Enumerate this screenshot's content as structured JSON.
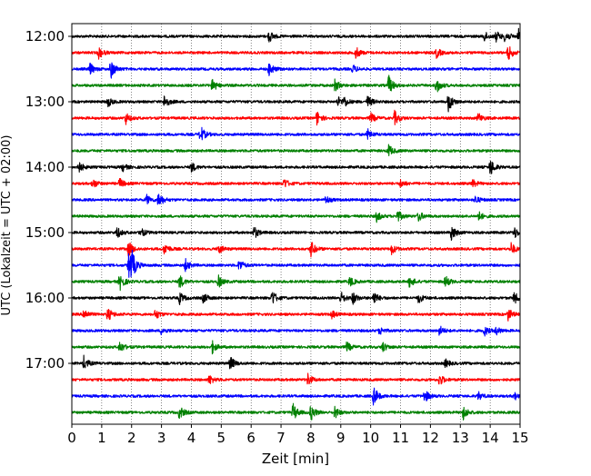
{
  "chart_data": {
    "type": "line",
    "title": "",
    "xlabel": "Zeit  [min]",
    "ylabel": "UTC (Lokalzeit = UTC + 02:00)",
    "xlim": [
      0,
      15
    ],
    "x_ticks": [
      "0",
      "1",
      "2",
      "3",
      "4",
      "5",
      "6",
      "7",
      "8",
      "9",
      "10",
      "11",
      "12",
      "13",
      "14",
      "15"
    ],
    "y_ticks": [
      {
        "label": "12:00",
        "trace": 0
      },
      {
        "label": "13:00",
        "trace": 4
      },
      {
        "label": "14:00",
        "trace": 8
      },
      {
        "label": "15:00",
        "trace": 12
      },
      {
        "label": "16:00",
        "trace": 16
      },
      {
        "label": "17:00",
        "trace": 20
      }
    ],
    "grid": "vertical-dotted",
    "trace_interval_min": 15,
    "colors": [
      "#000000",
      "#ff0000",
      "#0000ff",
      "#008000"
    ],
    "traces": [
      {
        "start": "12:00",
        "events": [
          {
            "t": 6.6,
            "a": 0.6
          },
          {
            "t": 13.8,
            "a": 0.5
          },
          {
            "t": 14.2,
            "a": 0.5
          },
          {
            "t": 14.5,
            "a": 0.6
          },
          {
            "t": 14.95,
            "a": 0.8
          }
        ]
      },
      {
        "start": "12:15",
        "events": [
          {
            "t": 0.9,
            "a": 0.6
          },
          {
            "t": 9.5,
            "a": 0.6
          },
          {
            "t": 12.2,
            "a": 0.5
          },
          {
            "t": 14.6,
            "a": 0.8
          }
        ]
      },
      {
        "start": "12:30",
        "events": [
          {
            "t": 0.6,
            "a": 0.6
          },
          {
            "t": 1.3,
            "a": 1.0
          },
          {
            "t": 6.6,
            "a": 0.7
          },
          {
            "t": 9.4,
            "a": 0.4
          }
        ]
      },
      {
        "start": "12:45",
        "events": [
          {
            "t": 4.7,
            "a": 0.7
          },
          {
            "t": 8.8,
            "a": 0.6
          },
          {
            "t": 10.6,
            "a": 1.0
          },
          {
            "t": 12.2,
            "a": 0.8
          }
        ]
      },
      {
        "start": "13:00",
        "events": [
          {
            "t": 1.2,
            "a": 0.5
          },
          {
            "t": 3.1,
            "a": 0.7
          },
          {
            "t": 8.9,
            "a": 0.5
          },
          {
            "t": 9.1,
            "a": 0.5
          },
          {
            "t": 9.9,
            "a": 0.6
          },
          {
            "t": 12.6,
            "a": 1.0
          }
        ]
      },
      {
        "start": "13:15",
        "events": [
          {
            "t": 1.8,
            "a": 0.6
          },
          {
            "t": 8.2,
            "a": 0.7
          },
          {
            "t": 10.0,
            "a": 0.5
          },
          {
            "t": 10.8,
            "a": 0.7
          },
          {
            "t": 13.6,
            "a": 0.5
          }
        ]
      },
      {
        "start": "13:30",
        "events": [
          {
            "t": 4.3,
            "a": 0.9
          },
          {
            "t": 9.9,
            "a": 0.5
          }
        ]
      },
      {
        "start": "13:45",
        "events": [
          {
            "t": 10.6,
            "a": 0.6
          }
        ]
      },
      {
        "start": "14:00",
        "events": [
          {
            "t": 0.2,
            "a": 0.7
          },
          {
            "t": 1.7,
            "a": 0.4
          },
          {
            "t": 4.0,
            "a": 0.5
          },
          {
            "t": 14.0,
            "a": 0.9
          }
        ]
      },
      {
        "start": "14:15",
        "events": [
          {
            "t": 0.7,
            "a": 0.5
          },
          {
            "t": 1.6,
            "a": 0.5
          },
          {
            "t": 7.1,
            "a": 0.5
          },
          {
            "t": 11.0,
            "a": 0.4
          },
          {
            "t": 13.4,
            "a": 0.4
          }
        ]
      },
      {
        "start": "14:30",
        "events": [
          {
            "t": 2.5,
            "a": 0.5
          },
          {
            "t": 2.9,
            "a": 0.8
          },
          {
            "t": 8.5,
            "a": 0.4
          },
          {
            "t": 13.5,
            "a": 0.4
          }
        ]
      },
      {
        "start": "14:45",
        "events": [
          {
            "t": 10.2,
            "a": 0.5
          },
          {
            "t": 10.9,
            "a": 0.6
          },
          {
            "t": 11.6,
            "a": 0.5
          },
          {
            "t": 13.6,
            "a": 0.5
          }
        ]
      },
      {
        "start": "15:00",
        "events": [
          {
            "t": 1.5,
            "a": 0.6
          },
          {
            "t": 2.3,
            "a": 0.5
          },
          {
            "t": 6.1,
            "a": 0.6
          },
          {
            "t": 12.7,
            "a": 0.8
          },
          {
            "t": 14.8,
            "a": 0.6
          }
        ]
      },
      {
        "start": "15:15",
        "events": [
          {
            "t": 1.9,
            "a": 0.8
          },
          {
            "t": 3.1,
            "a": 0.6
          },
          {
            "t": 4.9,
            "a": 0.5
          },
          {
            "t": 8.0,
            "a": 0.8
          },
          {
            "t": 10.7,
            "a": 0.5
          },
          {
            "t": 14.7,
            "a": 0.6
          }
        ]
      },
      {
        "start": "15:30",
        "events": [
          {
            "t": 1.9,
            "a": 1.3
          },
          {
            "t": 2.0,
            "a": 1.1
          },
          {
            "t": 3.8,
            "a": 0.6
          },
          {
            "t": 5.6,
            "a": 0.6
          }
        ]
      },
      {
        "start": "15:45",
        "events": [
          {
            "t": 1.6,
            "a": 0.9
          },
          {
            "t": 3.6,
            "a": 0.7
          },
          {
            "t": 4.9,
            "a": 0.6
          },
          {
            "t": 9.3,
            "a": 0.5
          },
          {
            "t": 11.3,
            "a": 0.6
          },
          {
            "t": 12.5,
            "a": 0.6
          }
        ]
      },
      {
        "start": "16:00",
        "events": [
          {
            "t": 3.6,
            "a": 0.6
          },
          {
            "t": 4.4,
            "a": 0.5
          },
          {
            "t": 6.7,
            "a": 0.8
          },
          {
            "t": 9.0,
            "a": 0.6
          },
          {
            "t": 9.4,
            "a": 0.6
          },
          {
            "t": 10.1,
            "a": 0.7
          },
          {
            "t": 11.6,
            "a": 0.5
          },
          {
            "t": 14.8,
            "a": 0.6
          }
        ]
      },
      {
        "start": "16:15",
        "events": [
          {
            "t": 0.4,
            "a": 0.6
          },
          {
            "t": 1.2,
            "a": 0.7
          },
          {
            "t": 2.8,
            "a": 0.5
          },
          {
            "t": 8.7,
            "a": 0.4
          },
          {
            "t": 14.6,
            "a": 0.6
          }
        ]
      },
      {
        "start": "16:30",
        "events": [
          {
            "t": 3.0,
            "a": 0.4
          },
          {
            "t": 10.3,
            "a": 0.4
          },
          {
            "t": 12.3,
            "a": 0.5
          },
          {
            "t": 13.8,
            "a": 0.5
          },
          {
            "t": 14.2,
            "a": 0.4
          }
        ]
      },
      {
        "start": "16:45",
        "events": [
          {
            "t": 1.6,
            "a": 0.6
          },
          {
            "t": 4.7,
            "a": 0.6
          },
          {
            "t": 9.2,
            "a": 0.5
          },
          {
            "t": 10.4,
            "a": 0.5
          }
        ]
      },
      {
        "start": "17:00",
        "events": [
          {
            "t": 0.4,
            "a": 0.7
          },
          {
            "t": 5.3,
            "a": 0.7
          },
          {
            "t": 12.5,
            "a": 0.4
          }
        ]
      },
      {
        "start": "17:15",
        "events": [
          {
            "t": 4.6,
            "a": 0.5
          },
          {
            "t": 7.9,
            "a": 0.6
          },
          {
            "t": 12.3,
            "a": 0.6
          }
        ]
      },
      {
        "start": "17:30",
        "events": [
          {
            "t": 10.1,
            "a": 1.0
          },
          {
            "t": 11.8,
            "a": 0.7
          },
          {
            "t": 13.6,
            "a": 0.4
          },
          {
            "t": 14.8,
            "a": 0.4
          }
        ]
      },
      {
        "start": "17:45",
        "events": [
          {
            "t": 3.6,
            "a": 0.7
          },
          {
            "t": 7.4,
            "a": 0.9
          },
          {
            "t": 8.0,
            "a": 0.8
          },
          {
            "t": 8.8,
            "a": 0.6
          },
          {
            "t": 13.1,
            "a": 0.7
          }
        ]
      }
    ]
  }
}
